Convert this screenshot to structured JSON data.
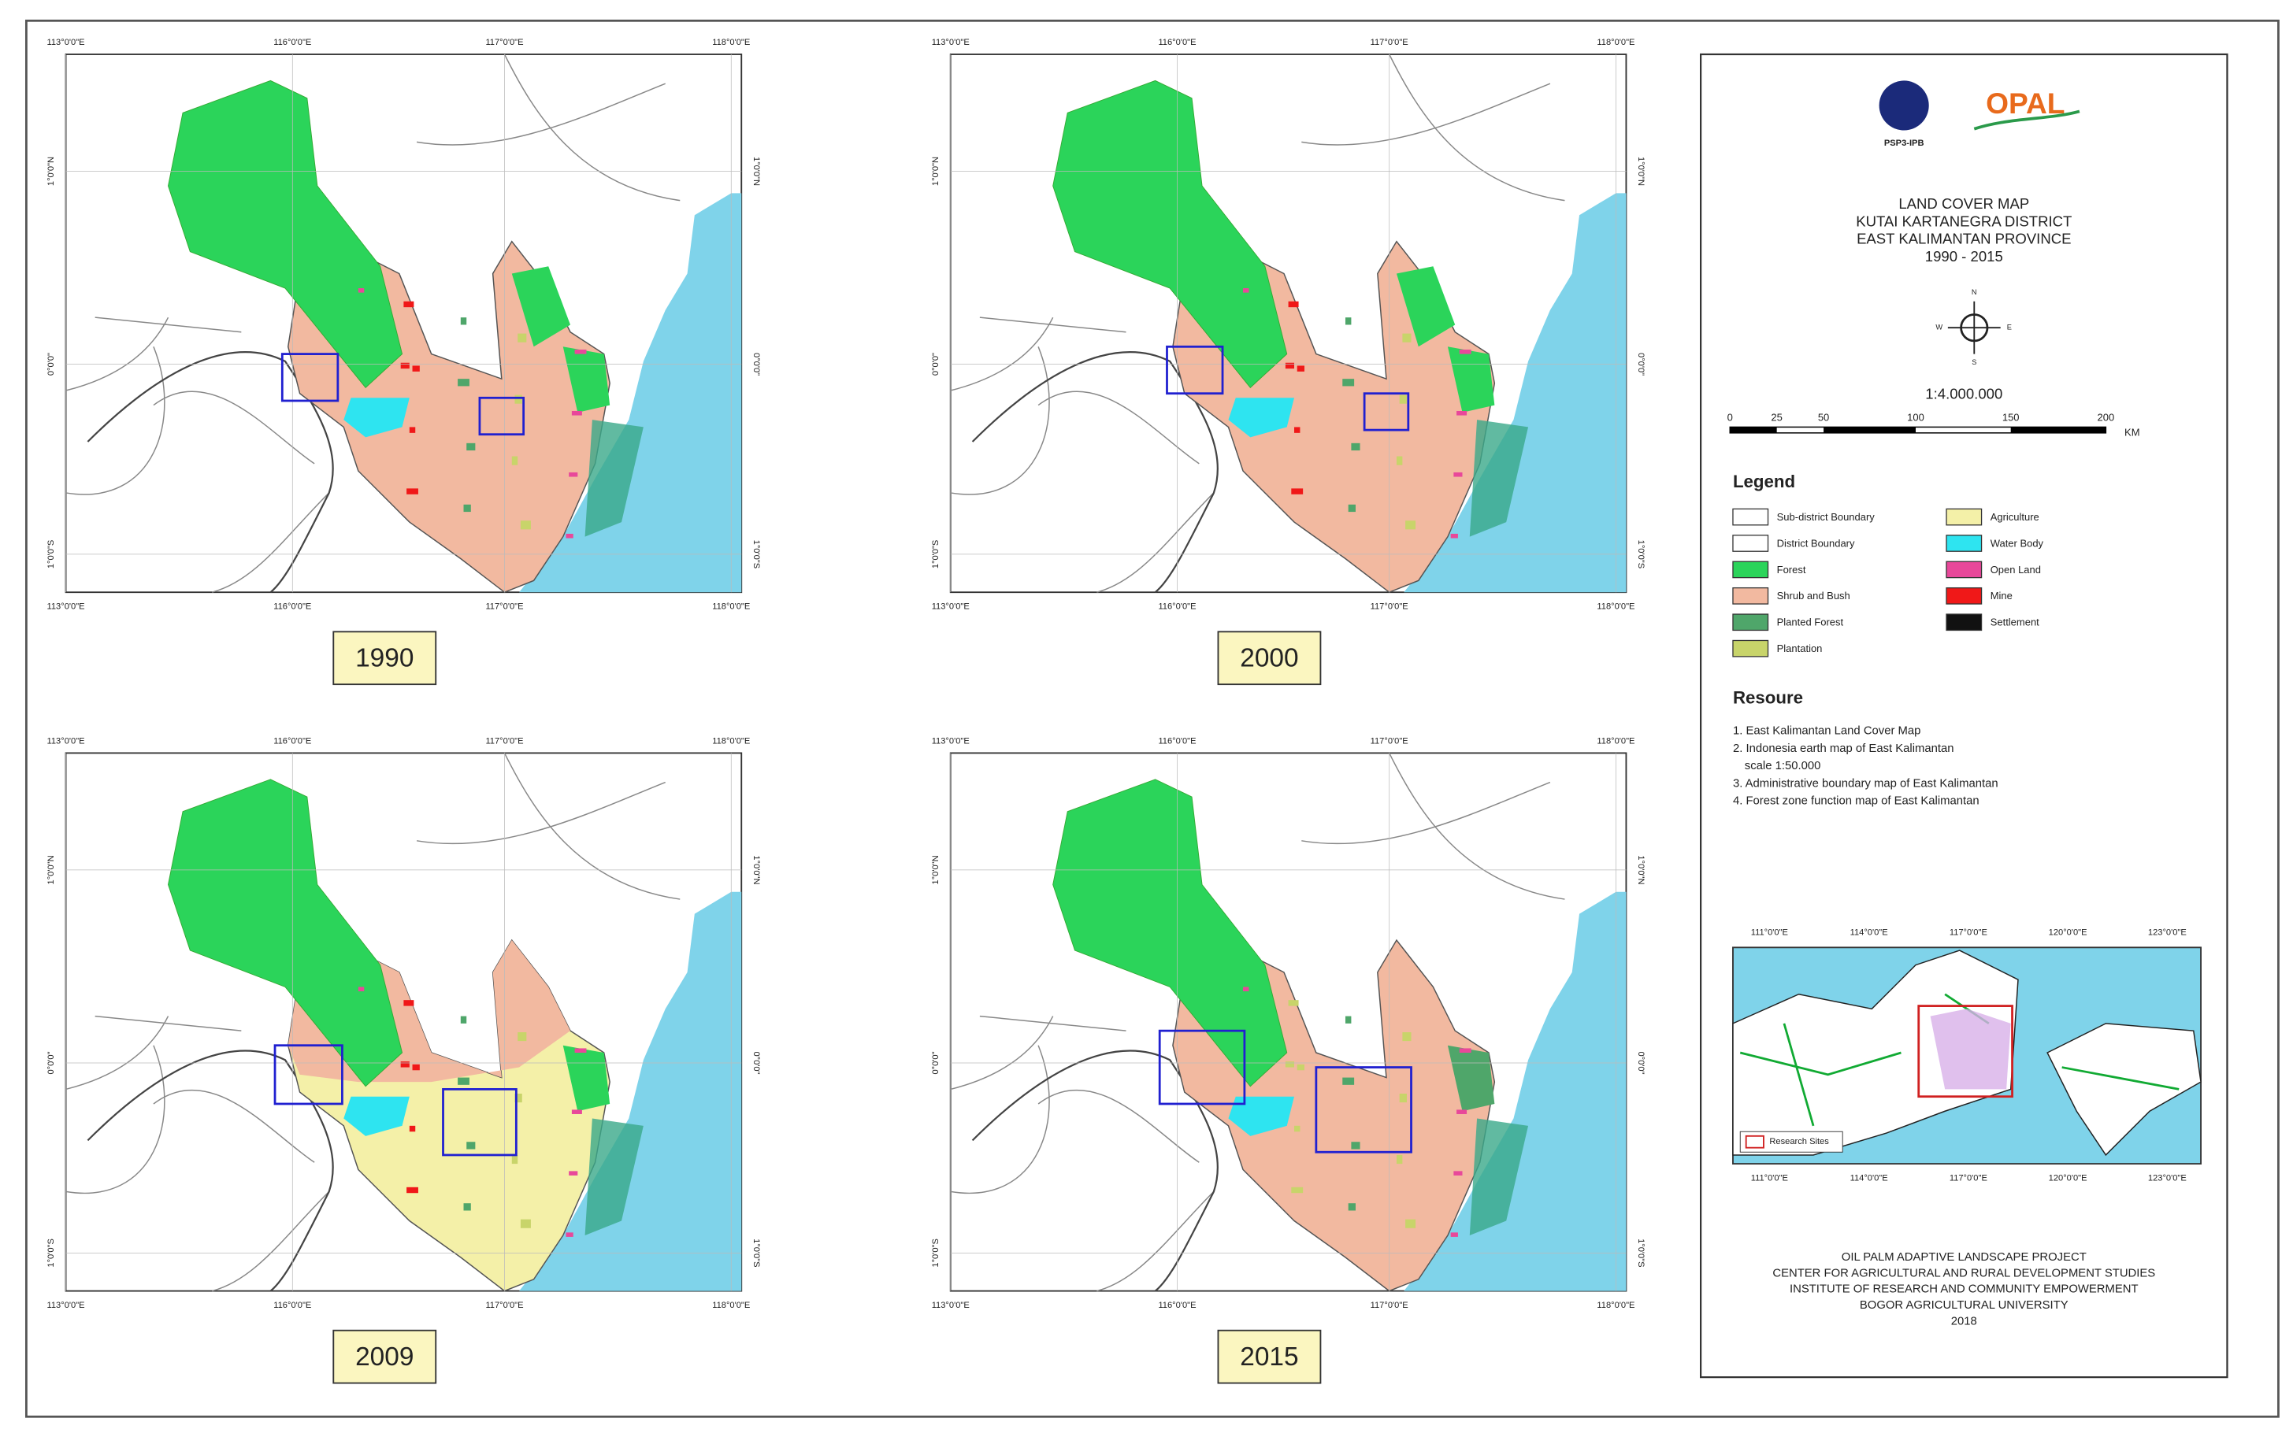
{
  "grid_labels": {
    "x": [
      "113°0'0\"E",
      "116°0'0\"E",
      "117°0'0\"E",
      "118°0'0\"E"
    ],
    "y": [
      "1°0'0\"N",
      "0°0'0\"",
      "1°0'0\"S"
    ]
  },
  "panels": [
    {
      "year": "1990"
    },
    {
      "year": "2000"
    },
    {
      "year": "2009"
    },
    {
      "year": "2015"
    }
  ],
  "side": {
    "logos": [
      "PSP3-IPB",
      "OPAL"
    ],
    "title": [
      "LAND COVER MAP",
      "KUTAI KARTANEGRA DISTRICT",
      "EAST KALIMANTAN PROVINCE",
      "1990 - 2015"
    ],
    "compass": [
      "N",
      "E",
      "S",
      "W"
    ],
    "scale": {
      "text": "1:4.000.000",
      "ticks": [
        "0",
        "25",
        "50",
        "100",
        "150",
        "200"
      ],
      "unit": "KM"
    },
    "legend_title": "Legend",
    "legend": [
      {
        "label": "Sub-district Boundary",
        "color": "#ffffff"
      },
      {
        "label": "District Boundary",
        "color": "#ffffff"
      },
      {
        "label": "Forest",
        "color": "#2bd45a"
      },
      {
        "label": "Shrub and Bush",
        "color": "#f2b9a0"
      },
      {
        "label": "Planted Forest",
        "color": "#4fa66a"
      },
      {
        "label": "Plantation",
        "color": "#c8d46a"
      },
      {
        "label": "Agriculture",
        "color": "#f4f0a8"
      },
      {
        "label": "Water Body",
        "color": "#2ee4f0"
      },
      {
        "label": "Open Land",
        "color": "#e8489a"
      },
      {
        "label": "Mine",
        "color": "#f01818"
      },
      {
        "label": "Settlement",
        "color": "#111111"
      }
    ],
    "resource_title": "Resoure",
    "resources": [
      "1. East Kalimantan Land Cover Map",
      "2. Indonesia earth map of East Kalimantan",
      "scale 1:50.000",
      "3. Administrative boundary map of East Kalimantan",
      "4. Forest zone function map of East Kalimantan"
    ],
    "inset": {
      "ticks": [
        "111°0'0\"E",
        "114°0'0\"E",
        "117°0'0\"E",
        "120°0'0\"E",
        "123°0'0\"E"
      ],
      "label": "Research Sites"
    },
    "footer": [
      "OIL PALM ADAPTIVE LANDSCAPE PROJECT",
      "CENTER FOR AGRICULTURAL AND RURAL DEVELOPMENT STUDIES",
      "INSTITUTE OF RESEARCH AND COMMUNITY EMPOWERMENT",
      "BOGOR AGRICULTURAL UNIVERSITY",
      "2018"
    ]
  }
}
